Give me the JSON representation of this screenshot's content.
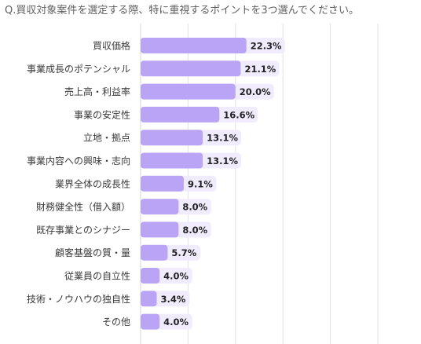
{
  "question": "Q.買収対象案件を選定する際、特に重視するポイントを3つ選んでください。",
  "chart_data": {
    "type": "bar",
    "orientation": "horizontal",
    "title": "",
    "xlabel": "",
    "ylabel": "",
    "categories": [
      "買収価格",
      "事業成長のポテンシャル",
      "売上高・利益率",
      "事業の安定性",
      "立地・拠点",
      "事業内容への興味・志向",
      "業界全体の成長性",
      "財務健全性（借入額）",
      "既存事業とのシナジー",
      "顧客基盤の質・量",
      "従業員の自立性",
      "技術・ノウハウの独自性",
      "その他"
    ],
    "values": [
      22.3,
      21.1,
      20.0,
      16.6,
      13.1,
      13.1,
      9.1,
      8.0,
      8.0,
      5.7,
      4.0,
      3.4,
      4.0
    ],
    "value_labels": [
      "22.3%",
      "21.1%",
      "20.0%",
      "16.6%",
      "13.1%",
      "13.1%",
      "9.1%",
      "8.0%",
      "8.0%",
      "5.7%",
      "4.0%",
      "3.4%",
      "4.0%"
    ],
    "xlim": [
      0,
      70
    ],
    "grid": "vertical",
    "colors": {
      "bar": "#b9a4f5",
      "label_bg": "#f1ecfd",
      "grid": "#e2e2e2",
      "text": "#3a3a3a",
      "value_text": "#222222"
    }
  }
}
